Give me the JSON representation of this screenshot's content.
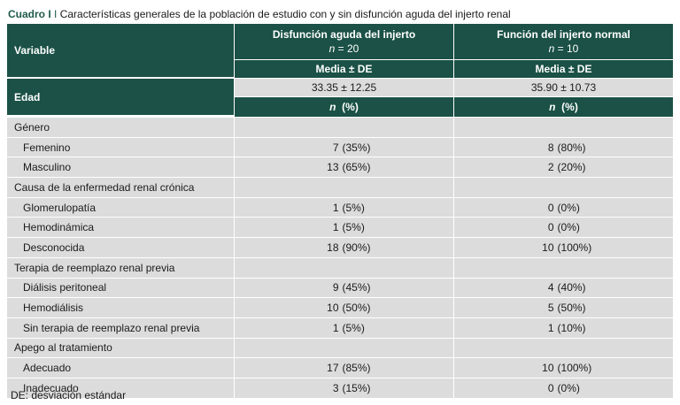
{
  "caption": {
    "label": "Cuadro I",
    "text": "Características generales de la población de estudio con y sin disfunción aguda del injerto renal"
  },
  "header": {
    "variable": "Variable",
    "group1": {
      "title": "Disfunción aguda del injerto",
      "n_label": "n",
      "n_value": "= 20"
    },
    "group2": {
      "title": "Función del injerto normal",
      "n_label": "n",
      "n_value": "= 10"
    },
    "stat_label": "Media ± DE",
    "count_label_n": "n",
    "count_label_pct": "(%)"
  },
  "edad": {
    "label": "Edad",
    "group1": "33.35 ± 12.25",
    "group2": "35.90 ± 10.73"
  },
  "sections": [
    {
      "title": "Género",
      "rows": [
        {
          "label": "Femenino",
          "g1n": "7",
          "g1p": "(35%)",
          "g2n": "8",
          "g2p": "(80%)"
        },
        {
          "label": "Masculino",
          "g1n": "13",
          "g1p": "(65%)",
          "g2n": "2",
          "g2p": "(20%)"
        }
      ]
    },
    {
      "title": "Causa de la enfermedad renal crónica",
      "rows": [
        {
          "label": "Glomerulopatía",
          "g1n": "1",
          "g1p": "(5%)",
          "g2n": "0",
          "g2p": "(0%)"
        },
        {
          "label": "Hemodinámica",
          "g1n": "1",
          "g1p": "(5%)",
          "g2n": "0",
          "g2p": "(0%)"
        },
        {
          "label": "Desconocida",
          "g1n": "18",
          "g1p": "(90%)",
          "g2n": "10",
          "g2p": "(100%)"
        }
      ]
    },
    {
      "title": "Terapia de reemplazo renal previa",
      "rows": [
        {
          "label": "Diálisis peritoneal",
          "g1n": "9",
          "g1p": "(45%)",
          "g2n": "4",
          "g2p": "(40%)"
        },
        {
          "label": "Hemodiálisis",
          "g1n": "10",
          "g1p": "(50%)",
          "g2n": "5",
          "g2p": "(50%)"
        },
        {
          "label": "Sin terapia de reemplazo renal previa",
          "g1n": "1",
          "g1p": "(5%)",
          "g2n": "1",
          "g2p": "(10%)"
        }
      ]
    },
    {
      "title": "Apego al tratamiento",
      "rows": [
        {
          "label": "Adecuado",
          "g1n": "17",
          "g1p": "(85%)",
          "g2n": "10",
          "g2p": "(100%)"
        },
        {
          "label": "Inadecuado",
          "g1n": "3",
          "g1p": "(15%)",
          "g2n": "0",
          "g2p": "(0%)"
        }
      ]
    }
  ],
  "footnote": "DE: desviación estándar",
  "colors": {
    "header_bg": "#1b5146",
    "body_bg": "#dcdcdc",
    "caption_label": "#1f5a4a"
  }
}
